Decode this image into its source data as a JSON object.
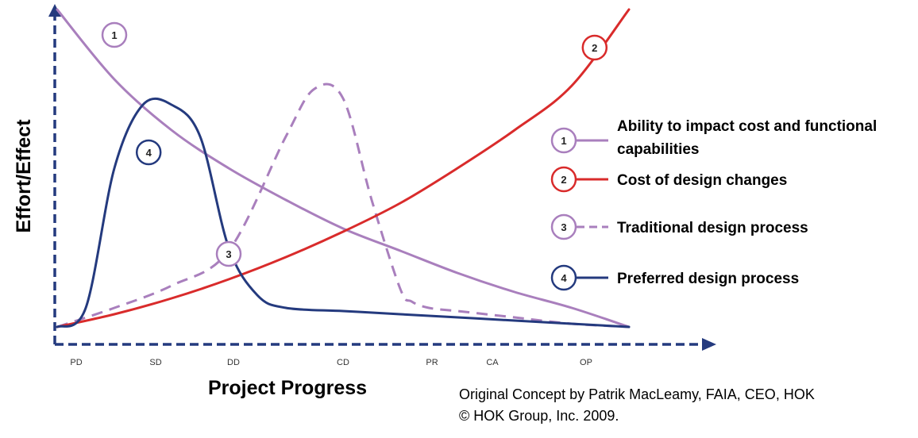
{
  "chart_data": {
    "type": "line",
    "title": "",
    "xlabel": "Project Progress",
    "ylabel": "Effort/Effect",
    "categories": [
      "PD",
      "SD",
      "DD",
      "CD",
      "PR",
      "CA",
      "OP"
    ],
    "xlim": [
      0,
      100
    ],
    "ylim": [
      0,
      100
    ],
    "grid": false,
    "legend_position": "right",
    "series": [
      {
        "id": "1",
        "name": "Ability to impact cost and functional capabilities",
        "color": "#a97fbd",
        "style": "solid",
        "x": [
          0,
          10,
          20,
          30,
          40,
          50,
          60,
          70,
          80,
          90,
          100
        ],
        "y": [
          100,
          78,
          62,
          50,
          40,
          31,
          24,
          17,
          11,
          6,
          0
        ]
      },
      {
        "id": "2",
        "name": "Cost of design changes",
        "color": "#d92b2b",
        "style": "solid",
        "x": [
          0,
          10,
          20,
          30,
          40,
          50,
          60,
          70,
          80,
          90,
          100
        ],
        "y": [
          0,
          4,
          9,
          15,
          22,
          30,
          39,
          50,
          62,
          76,
          100
        ]
      },
      {
        "id": "3",
        "name": "Traditional design process",
        "color": "#a97fbd",
        "style": "dashed",
        "x": [
          0,
          10,
          20,
          30,
          40,
          45,
          50,
          55,
          60,
          62,
          65,
          70,
          80,
          90,
          100
        ],
        "y": [
          0,
          6,
          13,
          24,
          60,
          75,
          72,
          40,
          12,
          8,
          6,
          5,
          3,
          1,
          0
        ]
      },
      {
        "id": "4",
        "name": "Preferred design process",
        "color": "#243a7e",
        "style": "solid",
        "x": [
          0,
          5,
          10,
          15,
          20,
          25,
          30,
          35,
          40,
          50,
          60,
          80,
          100
        ],
        "y": [
          0,
          6,
          50,
          70,
          70,
          60,
          25,
          10,
          6,
          5,
          4,
          2,
          0
        ]
      }
    ],
    "markers": [
      {
        "series": "1",
        "label": "1",
        "x": 10,
        "y": 92
      },
      {
        "series": "2",
        "label": "2",
        "x": 94,
        "y": 88
      },
      {
        "series": "3",
        "label": "3",
        "x": 30,
        "y": 23
      },
      {
        "series": "4",
        "label": "4",
        "x": 16,
        "y": 55
      }
    ],
    "legend": [
      {
        "label": "1",
        "text_lines": [
          "Ability to impact cost and functional",
          "capabilities"
        ],
        "color": "#a97fbd",
        "style": "solid"
      },
      {
        "label": "2",
        "text_lines": [
          "Cost of design changes"
        ],
        "color": "#d92b2b",
        "style": "solid"
      },
      {
        "label": "3",
        "text_lines": [
          "Traditional design process"
        ],
        "color": "#a97fbd",
        "style": "dashed"
      },
      {
        "label": "4",
        "text_lines": [
          "Preferred design process"
        ],
        "color": "#243a7e",
        "style": "solid"
      }
    ],
    "axis_color": "#243a7e"
  },
  "credit": {
    "line1": "Original Concept by Patrik MacLeamy, FAIA, CEO, HOK",
    "line2": "© HOK Group, Inc. 2009."
  }
}
